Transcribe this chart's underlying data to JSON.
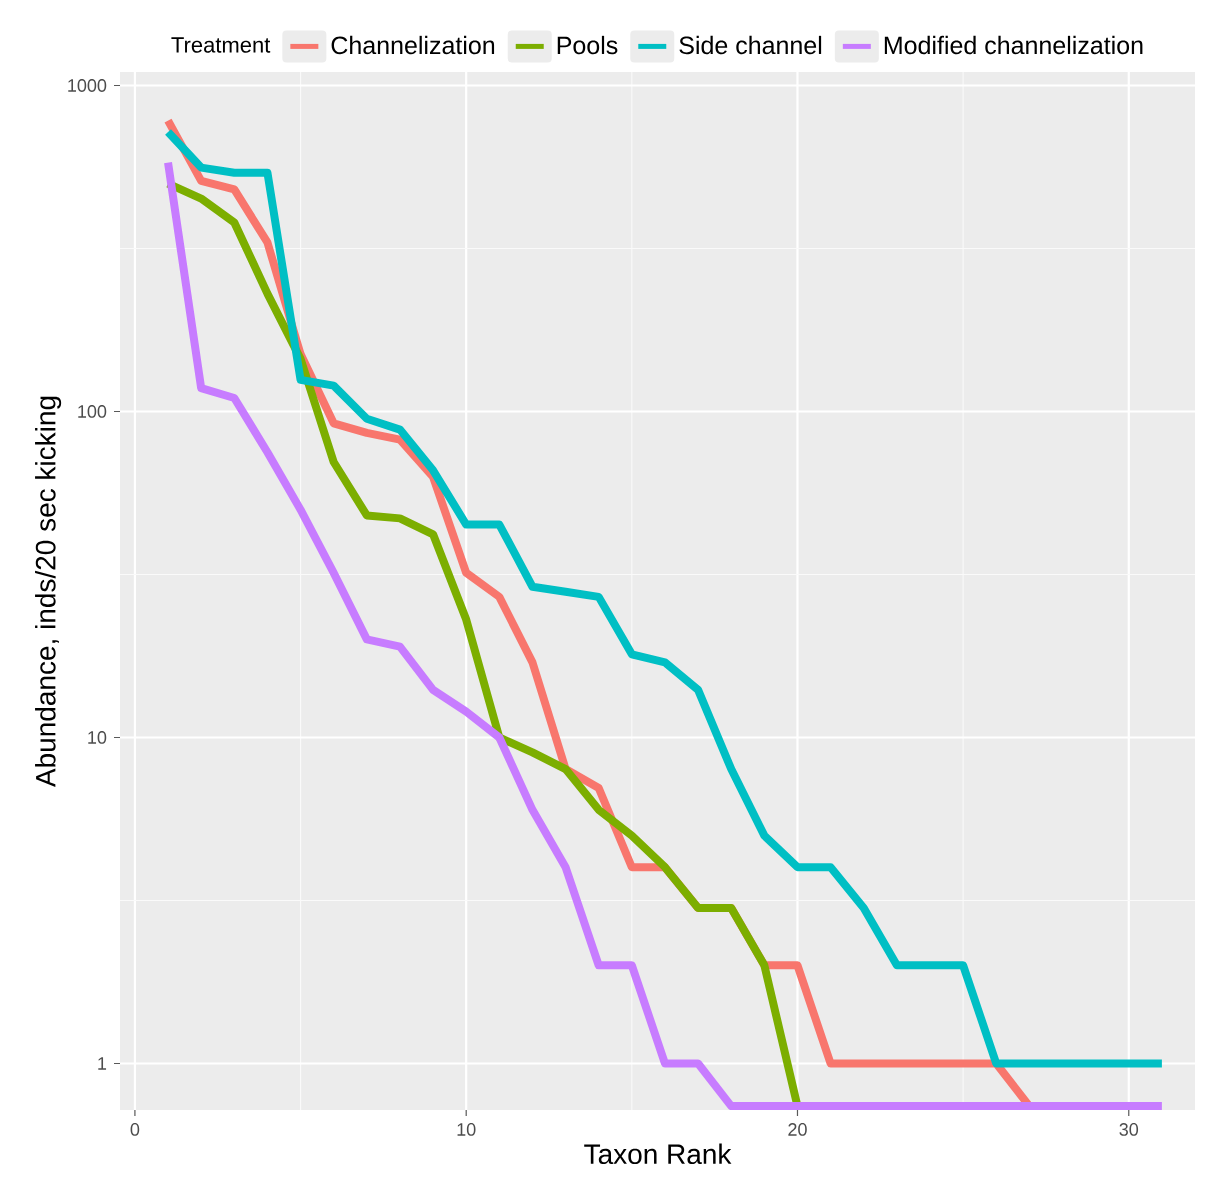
{
  "chart_data": {
    "type": "line",
    "xlabel": "Taxon Rank",
    "ylabel": "Abundance, inds/20 sec kicking",
    "legend_title": "Treatment",
    "legend": "top",
    "grid": true,
    "log": "y",
    "line_style": "solid",
    "x": [
      1,
      2,
      3,
      4,
      5,
      6,
      7,
      8,
      9,
      10,
      11,
      12,
      13,
      14,
      15,
      16,
      17,
      18,
      19,
      20,
      21,
      22,
      23,
      24,
      25,
      26,
      27,
      28,
      29,
      30,
      31
    ],
    "xlim": [
      -0.45,
      32
    ],
    "xticks": [
      0,
      10,
      20,
      30
    ],
    "ylim": [
      0.72,
      1100
    ],
    "yticks": [
      1,
      10,
      100,
      1000
    ],
    "series": [
      {
        "name": "Channelization",
        "color": "#F8766D",
        "values": [
          780,
          510,
          480,
          330,
          150,
          92,
          86,
          82,
          63,
          32,
          27,
          17,
          8,
          7,
          4,
          4,
          3,
          3,
          2,
          2,
          1,
          1,
          1,
          1,
          1,
          1,
          0.74,
          null,
          null,
          null,
          null
        ]
      },
      {
        "name": "Pools",
        "color": "#7CAE00",
        "values": [
          500,
          450,
          380,
          230,
          145,
          70,
          48,
          47,
          42,
          23,
          10,
          9,
          8,
          6,
          5,
          4,
          3,
          3,
          2,
          0.74,
          null,
          null,
          null,
          null,
          null,
          null,
          null,
          null,
          null,
          null,
          null
        ]
      },
      {
        "name": "Side channel",
        "color": "#00BFC4",
        "values": [
          720,
          560,
          540,
          540,
          125,
          120,
          95,
          88,
          66,
          45,
          45,
          29,
          28,
          27,
          18,
          17,
          14,
          8,
          5,
          4,
          4,
          3,
          2,
          2,
          2,
          1,
          1,
          1,
          1,
          1,
          1
        ]
      },
      {
        "name": "Modified channelization",
        "color": "#C77CFF",
        "values": [
          580,
          118,
          110,
          75,
          50,
          32,
          20,
          19,
          14,
          12,
          10,
          6,
          4,
          2,
          2,
          1,
          1,
          0.74,
          0.74,
          0.74,
          0.74,
          0.74,
          0.74,
          0.74,
          0.74,
          0.74,
          0.74,
          0.74,
          0.74,
          0.74,
          0.74
        ]
      }
    ]
  }
}
